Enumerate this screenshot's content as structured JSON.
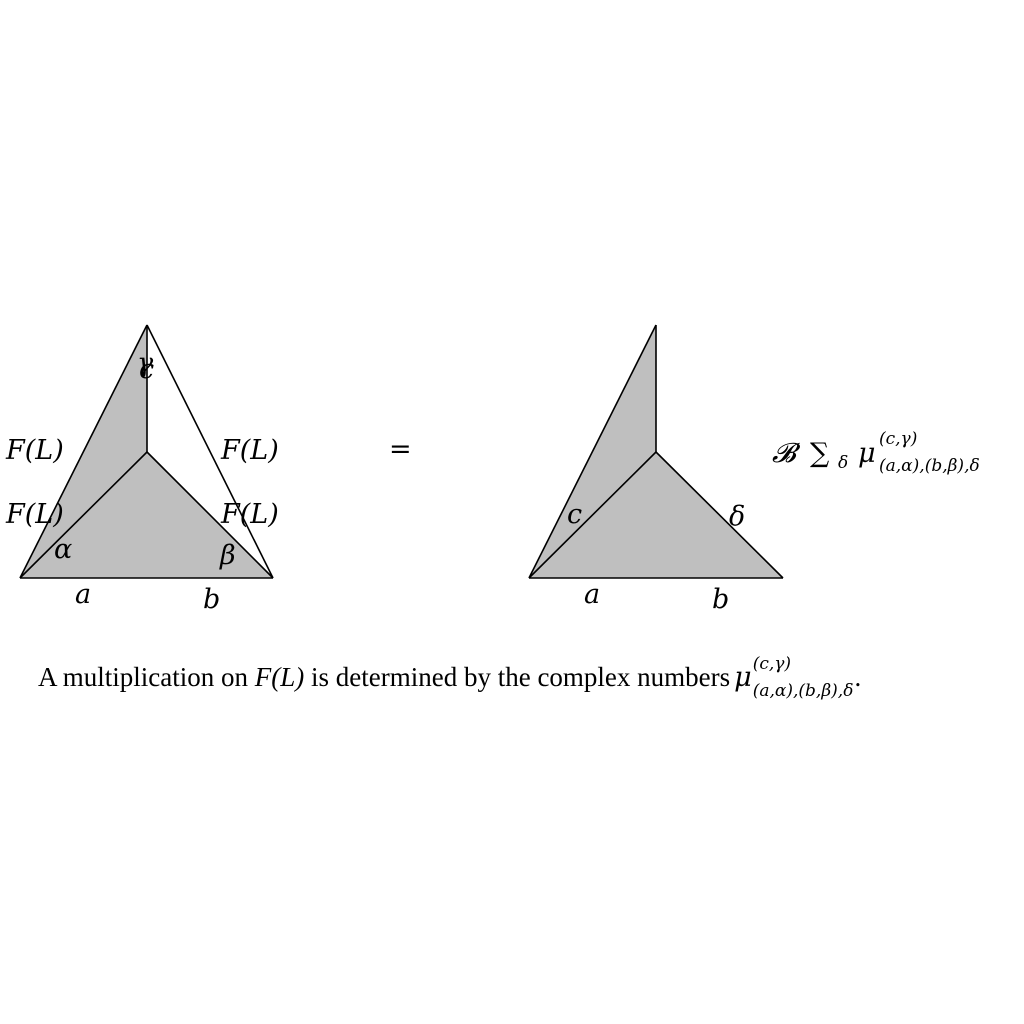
{
  "colors": {
    "fill": "#bfbfbf",
    "stroke": "#000000",
    "background": "#ffffff"
  },
  "left_diagram": {
    "edge_labels": {
      "left_upper": "F(L)",
      "left_lower": "F(L)",
      "right_upper": "F(L)",
      "right_lower": "F(L)",
      "bottom_left": "a",
      "bottom_right": "b",
      "top_c": "c",
      "top_gamma": "γ",
      "alpha": "α",
      "beta": "β"
    }
  },
  "equals_sign": "=",
  "right_diagram": {
    "edge_labels": {
      "c": "c",
      "delta": "δ",
      "bottom_left": "a",
      "bottom_right": "b"
    }
  },
  "coefficient": {
    "symbol": "𝓑",
    "sum": "∑",
    "sum_index": "δ",
    "mu": "μ",
    "superscript": "(c,γ)",
    "subscript": "(a,α),(b,β),δ"
  },
  "caption": {
    "prefix": "A multiplication on ",
    "object": "F(L)",
    "middle": " is determined by the complex numbers ",
    "mu": "μ",
    "superscript": "(c,γ)",
    "subscript": "(a,α),(b,β),δ",
    "suffix": "."
  }
}
